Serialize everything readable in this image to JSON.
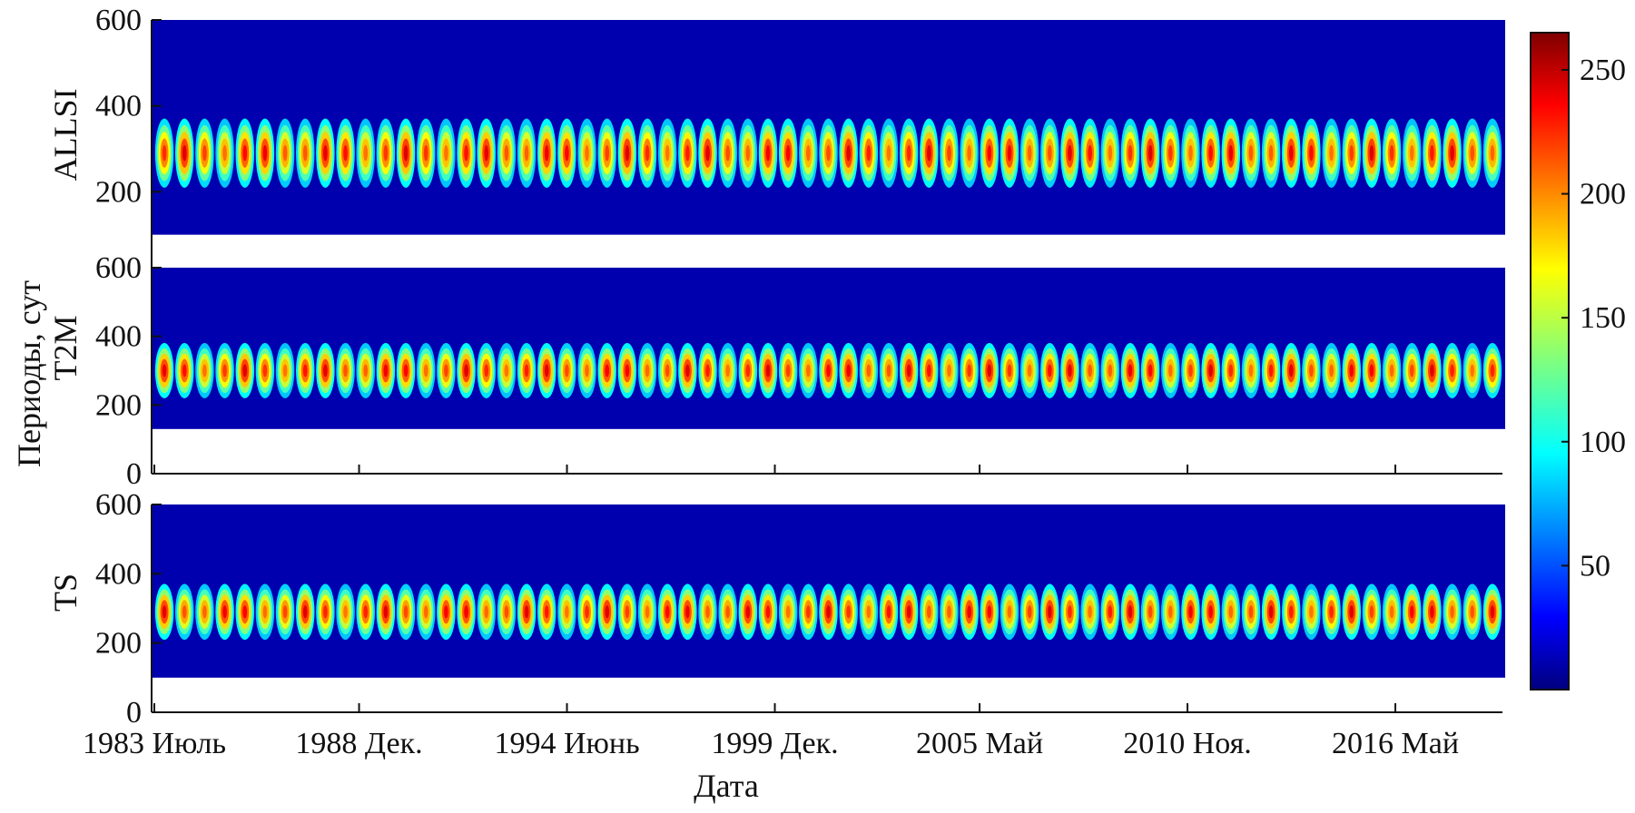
{
  "chart_data": {
    "type": "heatmap",
    "kind": "wavelet power spectra",
    "shared_xlabel": "Дата",
    "shared_ylabel": "Периоды, сут",
    "x_tick_labels": [
      "1983 Июль",
      "1988 Дек.",
      "1994 Июнь",
      "1999 Дек.",
      "2005 Май",
      "2010 Ноя.",
      "2016 Май"
    ],
    "x_range": [
      "1983-07",
      "2019-03"
    ],
    "x_ticks": [
      "1983-07",
      "1988-12",
      "1994-06",
      "1999-12",
      "2005-05",
      "2010-11",
      "2016-05"
    ],
    "colorscale": "jet",
    "colorbar": {
      "range": [
        0,
        265
      ],
      "tick_values": [
        50,
        100,
        150,
        200,
        250
      ],
      "tick_labels": [
        "50",
        "100",
        "150",
        "200",
        "250"
      ]
    },
    "panels": [
      {
        "label": "ALLSI",
        "y_tick_values": [
          200,
          400,
          600
        ],
        "y_tick_labels": [
          "200",
          "400",
          "600"
        ],
        "y_axis_max": 600,
        "y_axis_min": 0,
        "data_y_range": [
          100,
          600
        ],
        "band_center_period": 290,
        "band_width_periods": [
          215,
          370
        ],
        "oscillations": 67,
        "peak_power": 250
      },
      {
        "label": "T2M",
        "y_tick_values": [
          0,
          200,
          400,
          600
        ],
        "y_tick_labels": [
          "0",
          "200",
          "400",
          "600"
        ],
        "y_axis_max": 600,
        "y_axis_min": 0,
        "data_y_range": [
          130,
          600
        ],
        "band_center_period": 300,
        "band_width_periods": [
          225,
          380
        ],
        "oscillations": 67,
        "peak_power": 250
      },
      {
        "label": "TS",
        "y_tick_values": [
          0,
          200,
          400,
          600
        ],
        "y_tick_labels": [
          "0",
          "200",
          "400",
          "600"
        ],
        "y_axis_max": 600,
        "y_axis_min": 0,
        "data_y_range": [
          100,
          600
        ],
        "band_center_period": 290,
        "band_width_periods": [
          215,
          370
        ],
        "oscillations": 67,
        "peak_power": 250
      }
    ]
  }
}
